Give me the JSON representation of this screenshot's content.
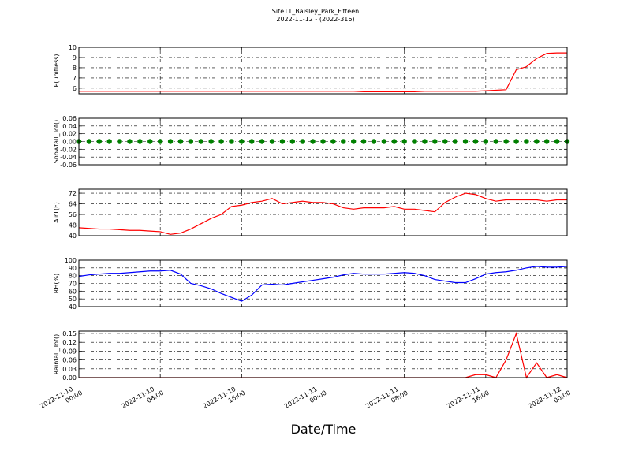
{
  "chart_data": {
    "title": "Site11_Baisley_Park_Fifteen",
    "subtitle": "2022-11-12 - (2022-316)",
    "xlabel": "Date/Time",
    "grid": true,
    "xlim": [
      "2022-11-10 00:00",
      "2022-11-12 00:00"
    ],
    "xticks": [
      "2022-11-10 00:00",
      "2022-11-10 08:00",
      "2022-11-10 16:00",
      "2022-11-11 00:00",
      "2022-11-11 08:00",
      "2022-11-11 16:00",
      "2022-11-12 00:00"
    ],
    "x": [
      "2022-11-10 00:00",
      "2022-11-10 01:00",
      "2022-11-10 02:00",
      "2022-11-10 03:00",
      "2022-11-10 04:00",
      "2022-11-10 05:00",
      "2022-11-10 06:00",
      "2022-11-10 07:00",
      "2022-11-10 08:00",
      "2022-11-10 09:00",
      "2022-11-10 10:00",
      "2022-11-10 11:00",
      "2022-11-10 12:00",
      "2022-11-10 13:00",
      "2022-11-10 14:00",
      "2022-11-10 15:00",
      "2022-11-10 16:00",
      "2022-11-10 17:00",
      "2022-11-10 18:00",
      "2022-11-10 19:00",
      "2022-11-10 20:00",
      "2022-11-10 21:00",
      "2022-11-10 22:00",
      "2022-11-10 23:00",
      "2022-11-11 00:00",
      "2022-11-11 01:00",
      "2022-11-11 02:00",
      "2022-11-11 03:00",
      "2022-11-11 04:00",
      "2022-11-11 05:00",
      "2022-11-11 06:00",
      "2022-11-11 07:00",
      "2022-11-11 08:00",
      "2022-11-11 09:00",
      "2022-11-11 10:00",
      "2022-11-11 11:00",
      "2022-11-11 12:00",
      "2022-11-11 13:00",
      "2022-11-11 14:00",
      "2022-11-11 15:00",
      "2022-11-11 16:00",
      "2022-11-11 17:00",
      "2022-11-11 18:00",
      "2022-11-11 19:00",
      "2022-11-11 20:00",
      "2022-11-11 21:00",
      "2022-11-11 22:00",
      "2022-11-11 23:00",
      "2022-11-12 00:00"
    ],
    "panels": [
      {
        "type": "line",
        "ylabel": "P(unitless)",
        "color": "#ff0000",
        "ylim": [
          5.45,
          10
        ],
        "yticks": [
          6,
          7,
          8,
          9,
          10
        ],
        "values": [
          5.7,
          5.7,
          5.7,
          5.7,
          5.7,
          5.7,
          5.7,
          5.7,
          5.7,
          5.7,
          5.7,
          5.7,
          5.7,
          5.7,
          5.7,
          5.7,
          5.7,
          5.7,
          5.7,
          5.7,
          5.7,
          5.7,
          5.7,
          5.7,
          5.7,
          5.7,
          5.7,
          5.7,
          5.65,
          5.65,
          5.65,
          5.65,
          5.65,
          5.65,
          5.7,
          5.7,
          5.7,
          5.7,
          5.7,
          5.7,
          5.75,
          5.8,
          5.85,
          7.8,
          8.1,
          8.9,
          9.4,
          9.45,
          9.45
        ]
      },
      {
        "type": "scatter",
        "ylabel": "Snowfall_Tot()",
        "color": "#008000",
        "ylim": [
          -0.06,
          0.06
        ],
        "yticks": [
          -0.06,
          -0.04,
          -0.02,
          {
            "value": 0,
            "label": "0.00"
          },
          0.02,
          0.04,
          0.06
        ],
        "values": [
          0,
          0,
          0,
          0,
          0,
          0,
          0,
          0,
          0,
          0,
          0,
          0,
          0,
          0,
          0,
          0,
          0,
          0,
          0,
          0,
          0,
          0,
          0,
          0,
          0,
          0,
          0,
          0,
          0,
          0,
          0,
          0,
          0,
          0,
          0,
          0,
          0,
          0,
          0,
          0,
          0,
          0,
          0,
          0,
          0,
          0,
          0,
          0,
          0
        ]
      },
      {
        "type": "line",
        "ylabel": "AirT(F)",
        "color": "#ff0000",
        "ylim": [
          40,
          75
        ],
        "yticks": [
          40,
          48,
          56,
          64,
          72
        ],
        "values": [
          46,
          45.5,
          45,
          45,
          44.5,
          44,
          44,
          43.5,
          43,
          41,
          42,
          45,
          49,
          53,
          56,
          62,
          63,
          65,
          66,
          68,
          64,
          65,
          66,
          65,
          65,
          64,
          61,
          60,
          61,
          61,
          61,
          62,
          60,
          60,
          59,
          58,
          65,
          69,
          72,
          71,
          68,
          66,
          67,
          67,
          67,
          67,
          66,
          67,
          67
        ]
      },
      {
        "type": "line",
        "ylabel": "RH(%)",
        "color": "#0000ff",
        "ylim": [
          40,
          100
        ],
        "yticks": [
          40,
          50,
          60,
          70,
          80,
          90,
          100
        ],
        "values": [
          79,
          81,
          82,
          83,
          83,
          84,
          85,
          86,
          86,
          87,
          82,
          70,
          67,
          63,
          57,
          52,
          47,
          55,
          68,
          69,
          68,
          70,
          72,
          74,
          76,
          78,
          81,
          83,
          82,
          82,
          82,
          83,
          84,
          83,
          80,
          75,
          73,
          71,
          71,
          76,
          82,
          84,
          85,
          87,
          90,
          92,
          91,
          91,
          92
        ]
      },
      {
        "type": "line",
        "ylabel": "Rainfall_Tot()",
        "color": "#ff0000",
        "ylim": [
          0,
          0.158
        ],
        "yticks": [
          {
            "value": 0,
            "label": "0.00"
          },
          0.03,
          0.06,
          0.09,
          0.12,
          0.15
        ],
        "values": [
          0,
          0,
          0,
          0,
          0,
          0,
          0,
          0,
          0,
          0,
          0,
          0,
          0,
          0,
          0,
          0,
          0,
          0,
          0,
          0,
          0,
          0,
          0,
          0,
          0,
          0,
          0,
          0,
          0,
          0,
          0,
          0,
          0,
          0,
          0,
          0,
          0,
          0,
          0,
          0.01,
          0.01,
          0,
          0.06,
          0.15,
          0,
          0.05,
          0,
          0.01,
          0
        ]
      }
    ]
  }
}
